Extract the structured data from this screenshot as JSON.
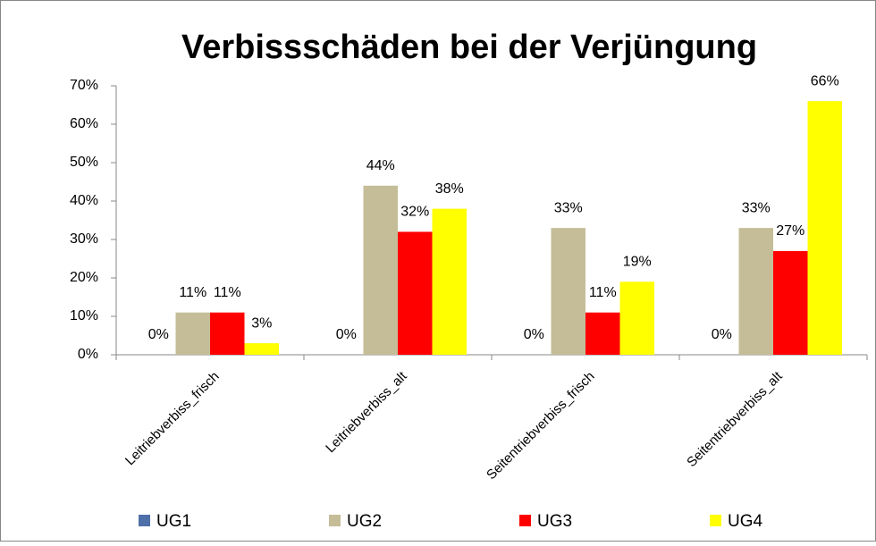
{
  "chart_data": {
    "type": "bar",
    "title": "Verbissschäden bei der Verjüngung",
    "categories": [
      "Leitriebverbiss_frisch",
      "Leitriebverbiss_alt",
      "Seitentriebverbiss_frisch",
      "Seitentriebverbiss_alt"
    ],
    "series": [
      {
        "name": "UG1",
        "color": "#4f6fa8",
        "values": [
          0,
          0,
          0,
          0
        ],
        "value_labels": [
          "0%",
          "0%",
          "0%",
          "0%"
        ]
      },
      {
        "name": "UG2",
        "color": "#c4bd97",
        "values": [
          11,
          44,
          33,
          33
        ],
        "value_labels": [
          "11%",
          "44%",
          "33%",
          "33%"
        ]
      },
      {
        "name": "UG3",
        "color": "#ff0000",
        "values": [
          11,
          32,
          11,
          27
        ],
        "value_labels": [
          "11%",
          "32%",
          "11%",
          "27%"
        ]
      },
      {
        "name": "UG4",
        "color": "#ffff00",
        "values": [
          3,
          38,
          19,
          66
        ],
        "value_labels": [
          "3%",
          "38%",
          "19%",
          "66%"
        ]
      }
    ],
    "ylim": [
      0,
      70
    ],
    "yticks": [
      {
        "value": 0,
        "label": "0%"
      },
      {
        "value": 10,
        "label": "10%"
      },
      {
        "value": 20,
        "label": "20%"
      },
      {
        "value": 30,
        "label": "30%"
      },
      {
        "value": 40,
        "label": "40%"
      },
      {
        "value": 50,
        "label": "50%"
      },
      {
        "value": 60,
        "label": "60%"
      },
      {
        "value": 70,
        "label": "70%"
      }
    ],
    "legend": "bottom"
  }
}
